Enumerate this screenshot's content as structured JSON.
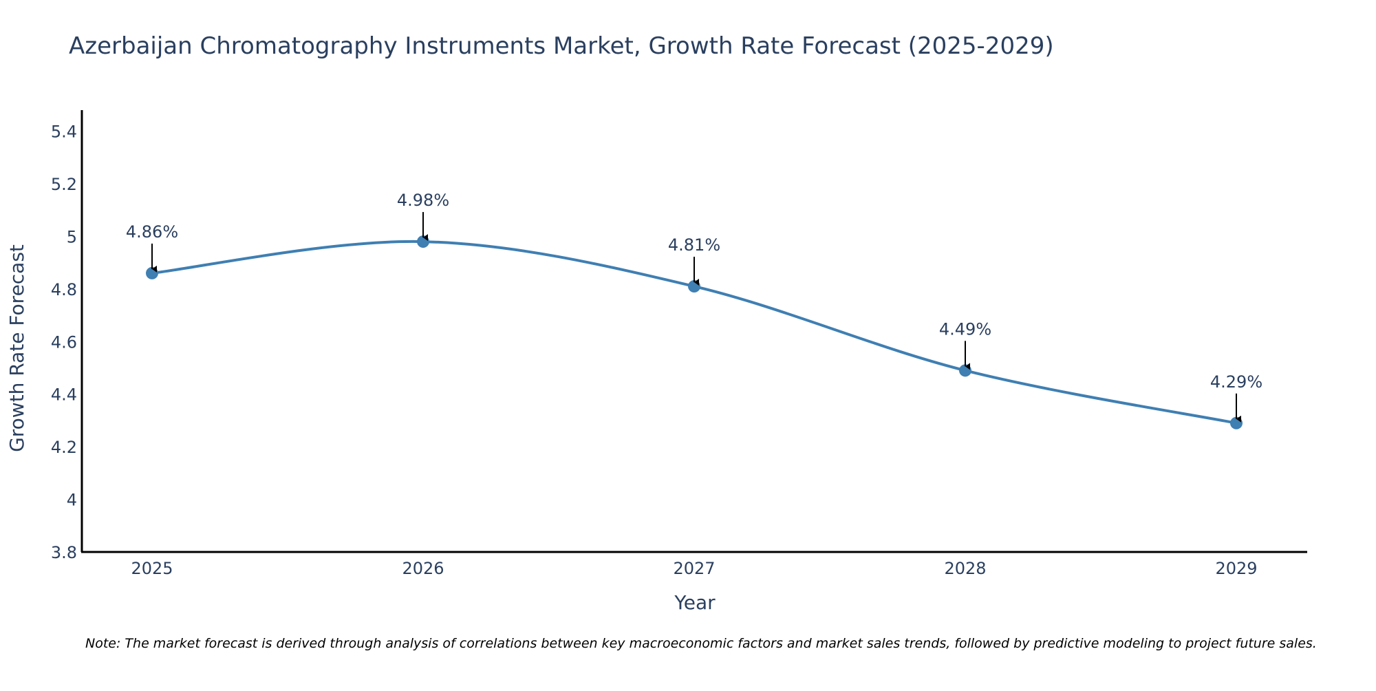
{
  "chart_data": {
    "type": "line",
    "title": "Azerbaijan Chromatography Instruments Market, Growth Rate Forecast (2025-2029)",
    "xlabel": "Year",
    "ylabel": "Growth Rate Forecast",
    "categories": [
      "2025",
      "2026",
      "2027",
      "2028",
      "2029"
    ],
    "series": [
      {
        "name": "Growth Rate Forecast",
        "values": [
          4.86,
          4.98,
          4.81,
          4.49,
          4.29
        ],
        "labels": [
          "4.86%",
          "4.98%",
          "4.81%",
          "4.49%",
          "4.29%"
        ]
      }
    ],
    "ylim": [
      3.8,
      5.48
    ],
    "yticks": [
      3.8,
      4,
      4.2,
      4.4,
      4.6,
      4.8,
      5,
      5.2,
      5.4
    ],
    "ytick_labels": [
      "3.8",
      "4",
      "4.2",
      "4.4",
      "4.6",
      "4.8",
      "5",
      "5.2",
      "5.4"
    ],
    "line_shape": "spline",
    "grid": false,
    "note": "Note: The market forecast is derived through analysis of correlations between key macroeconomic factors and market sales trends, followed by predictive modeling to project future sales."
  },
  "colors": {
    "line": "#3f7fb2",
    "marker": "#3f7fb2",
    "text": "#2a3f5f",
    "axis": "#000000",
    "arrow": "#000000",
    "note": "#000000"
  }
}
